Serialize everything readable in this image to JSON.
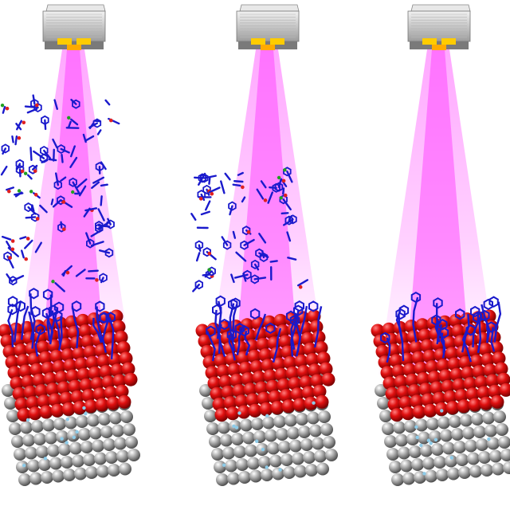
{
  "scene": {
    "panel_count": 3,
    "panels": [
      {
        "id": "panel-1",
        "label": "",
        "adsorbate_level": "high"
      },
      {
        "id": "panel-2",
        "label": "",
        "adsorbate_level": "medium"
      },
      {
        "id": "panel-3",
        "label": "",
        "adsorbate_level": "none"
      }
    ],
    "colors": {
      "beam": "#ff33ff",
      "lamp_body": "#c8c8c8",
      "lamp_emitter": "#ffcc00",
      "surface_top": "#e01010",
      "surface_bottom": "#9a9a9a",
      "molecule_main": "#1a1acc",
      "molecule_accent_red": "#e02020",
      "molecule_accent_green": "#20a020"
    },
    "icons": [
      "uv-lamp-icon",
      "light-beam",
      "molecular-chain",
      "oxide-surface-slab"
    ]
  }
}
